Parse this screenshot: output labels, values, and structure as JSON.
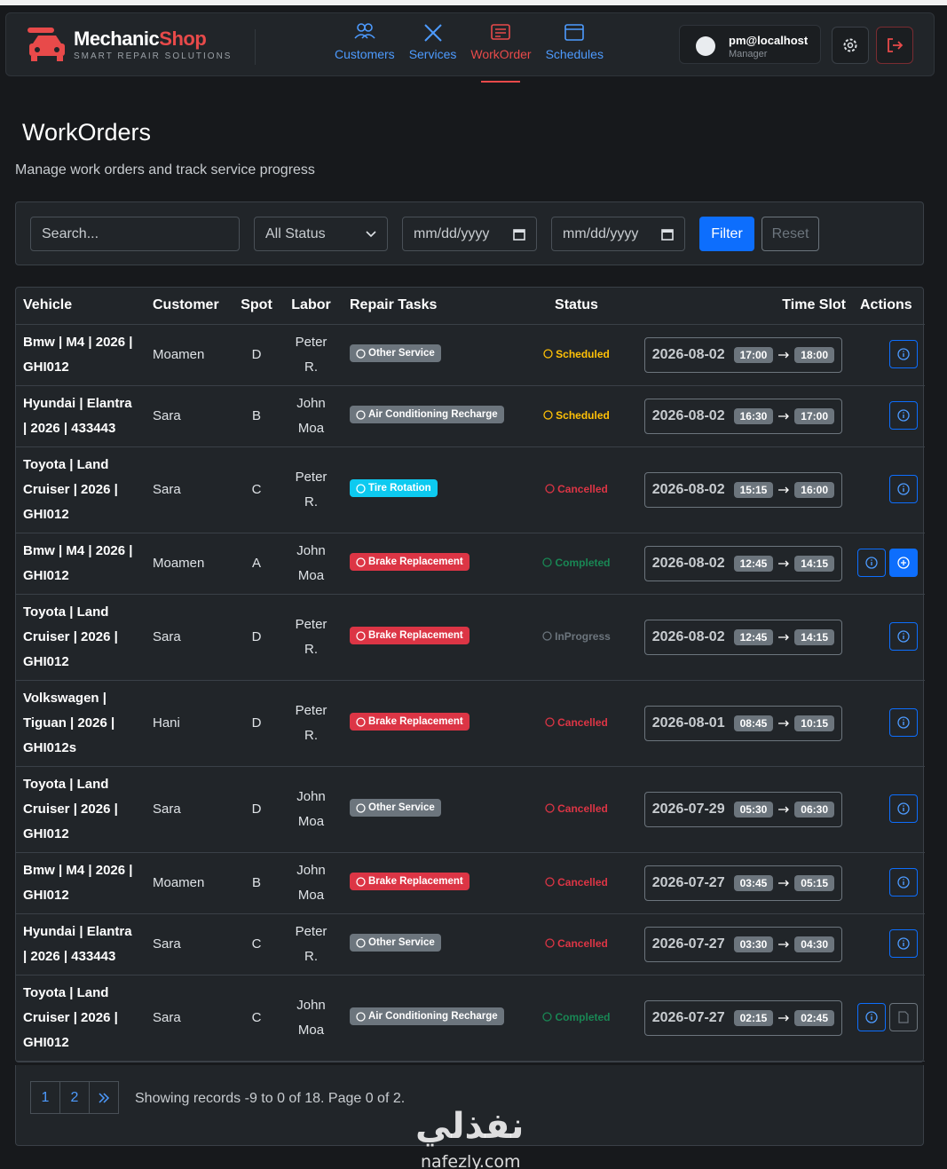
{
  "brand": {
    "name_main": "Mechanic",
    "name_accent": "Shop",
    "tagline": "SMART REPAIR SOLUTIONS"
  },
  "nav": {
    "items": [
      "Customers",
      "Services",
      "WorkOrder",
      "Schedules"
    ],
    "active": 2
  },
  "user": {
    "email": "pm@localhost",
    "role": "Manager"
  },
  "page": {
    "title": "WorkOrders",
    "subtitle": "Manage work orders and track service progress"
  },
  "filters": {
    "search_placeholder": "Search...",
    "status": "All Status",
    "date_placeholder": "mm/dd/yyyy",
    "filter_button": "Filter",
    "reset_button": "Reset"
  },
  "table": {
    "headers": [
      "Vehicle",
      "Customer",
      "Spot",
      "Labor",
      "Repair Tasks",
      "Status",
      "Time Slot",
      "Actions"
    ],
    "rows": [
      {
        "vehicle": "Bmw | M4 | 2026 | GHI012",
        "customer": "Moamen",
        "spot": "D",
        "labor": "Peter R.",
        "task": "Other Service",
        "task_color": "#6c757d",
        "status": "Scheduled",
        "status_color": "#ffc107",
        "date": "2026-08-02",
        "start": "17:00",
        "end": "18:00",
        "actions": [
          "info"
        ]
      },
      {
        "vehicle": "Hyundai | Elantra | 2026 | 433443",
        "customer": "Sara",
        "spot": "B",
        "labor": "John Moa",
        "task": "Air Conditioning Recharge",
        "task_color": "#6c757d",
        "status": "Scheduled",
        "status_color": "#ffc107",
        "date": "2026-08-02",
        "start": "16:30",
        "end": "17:00",
        "actions": [
          "info"
        ]
      },
      {
        "vehicle": "Toyota | Land Cruiser | 2026 | GHI012",
        "customer": "Sara",
        "spot": "C",
        "labor": "Peter R.",
        "task": "Tire Rotation",
        "task_color": "#0dcaf0",
        "status": "Cancelled",
        "status_color": "#dc3545",
        "date": "2026-08-02",
        "start": "15:15",
        "end": "16:00",
        "actions": [
          "info"
        ]
      },
      {
        "vehicle": "Bmw | M4 | 2026 | GHI012",
        "customer": "Moamen",
        "spot": "A",
        "labor": "John Moa",
        "task": "Brake Replacement",
        "task_color": "#dc3545",
        "status": "Completed",
        "status_color": "#198754",
        "date": "2026-08-02",
        "start": "12:45",
        "end": "14:15",
        "actions": [
          "info",
          "start"
        ]
      },
      {
        "vehicle": "Toyota | Land Cruiser | 2026 | GHI012",
        "customer": "Sara",
        "spot": "D",
        "labor": "Peter R.",
        "task": "Brake Replacement",
        "task_color": "#dc3545",
        "status": "InProgress",
        "status_color": "#6c757d",
        "date": "2026-08-02",
        "start": "12:45",
        "end": "14:15",
        "actions": [
          "info"
        ]
      },
      {
        "vehicle": "Volkswagen | Tiguan | 2026 | GHI012s",
        "customer": "Hani",
        "spot": "D",
        "labor": "Peter R.",
        "task": "Brake Replacement",
        "task_color": "#dc3545",
        "status": "Cancelled",
        "status_color": "#dc3545",
        "date": "2026-08-01",
        "start": "08:45",
        "end": "10:15",
        "actions": [
          "info"
        ]
      },
      {
        "vehicle": "Toyota | Land Cruiser | 2026 | GHI012",
        "customer": "Sara",
        "spot": "D",
        "labor": "John Moa",
        "task": "Other Service",
        "task_color": "#6c757d",
        "status": "Cancelled",
        "status_color": "#dc3545",
        "date": "2026-07-29",
        "start": "05:30",
        "end": "06:30",
        "actions": [
          "info"
        ]
      },
      {
        "vehicle": "Bmw | M4 | 2026 | GHI012",
        "customer": "Moamen",
        "spot": "B",
        "labor": "John Moa",
        "task": "Brake Replacement",
        "task_color": "#dc3545",
        "status": "Cancelled",
        "status_color": "#dc3545",
        "date": "2026-07-27",
        "start": "03:45",
        "end": "05:15",
        "actions": [
          "info"
        ]
      },
      {
        "vehicle": "Hyundai | Elantra | 2026 | 433443",
        "customer": "Sara",
        "spot": "C",
        "labor": "Peter R.",
        "task": "Other Service",
        "task_color": "#6c757d",
        "status": "Cancelled",
        "status_color": "#dc3545",
        "date": "2026-07-27",
        "start": "03:30",
        "end": "04:30",
        "actions": [
          "info"
        ]
      },
      {
        "vehicle": "Toyota | Land Cruiser | 2026 | GHI012",
        "customer": "Sara",
        "spot": "C",
        "labor": "John Moa",
        "task": "Air Conditioning Recharge",
        "task_color": "#6c757d",
        "status": "Completed",
        "status_color": "#198754",
        "date": "2026-07-27",
        "start": "02:15",
        "end": "02:45",
        "actions": [
          "info",
          "invoice"
        ]
      }
    ]
  },
  "pagination": {
    "pages": [
      1,
      2
    ],
    "summary": "Showing records -9 to 0 of 18. Page 0 of 2."
  },
  "watermark": {
    "arabic": "نفذلي",
    "latin": "nafezly.com"
  }
}
